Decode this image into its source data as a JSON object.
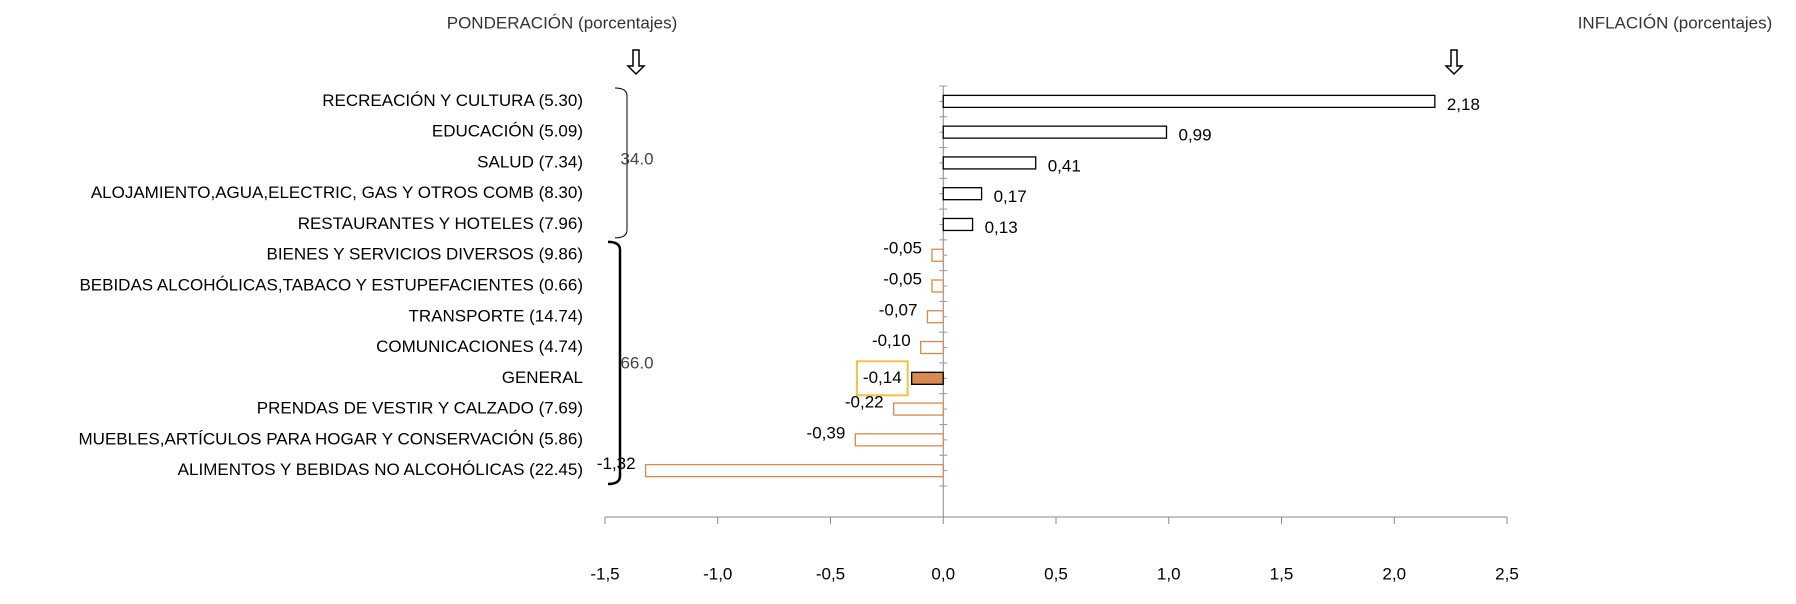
{
  "chart_data": {
    "type": "hbar",
    "left_header": "PONDERACIÓN (porcentajes)",
    "right_header": "INFLACIÓN (porcentajes)",
    "categories": [
      "RECREACIÓN Y CULTURA (5.30)",
      "EDUCACIÓN (5.09)",
      "SALUD (7.34)",
      "ALOJAMIENTO,AGUA,ELECTRIC, GAS Y OTROS COMB (8.30)",
      "RESTAURANTES Y HOTELES (7.96)",
      "BIENES Y SERVICIOS DIVERSOS (9.86)",
      "BEBIDAS ALCOHÓLICAS,TABACO Y ESTUPEFACIENTES (0.66)",
      "TRANSPORTE (14.74)",
      "COMUNICACIONES (4.74)",
      "GENERAL",
      "PRENDAS DE VESTIR Y CALZADO (7.69)",
      "MUEBLES,ARTÍCULOS PARA HOGAR Y CONSERVACIÓN (5.86)",
      "ALIMENTOS Y BEBIDAS NO ALCOHÓLICAS (22.45)"
    ],
    "values": [
      2.18,
      0.99,
      0.41,
      0.17,
      0.13,
      -0.05,
      -0.05,
      -0.07,
      -0.1,
      -0.14,
      -0.22,
      -0.39,
      -1.32
    ],
    "value_labels": [
      "2,18",
      "0,99",
      "0,41",
      "0,17",
      "0,13",
      "-0,05",
      "-0,05",
      "-0,07",
      "-0,10",
      "-0,14",
      "-0,22",
      "-0,39",
      "-1,32"
    ],
    "positive_color": "#000000",
    "negative_color": "#d9894f",
    "highlight": "GENERAL",
    "highlight_box_color": "#f5c242",
    "groups": [
      {
        "label": "34.0"
      },
      {
        "label": "66.0"
      }
    ],
    "xlim": [
      -1.5,
      2.5
    ],
    "xticks": [
      {
        "value": -1.5,
        "label": "-1,5"
      },
      {
        "value": -1.0,
        "label": "-1,0"
      },
      {
        "value": -0.5,
        "label": "-0,5"
      },
      {
        "value": 0.0,
        "label": "0,0"
      },
      {
        "value": 0.5,
        "label": "0,5"
      },
      {
        "value": 1.0,
        "label": "1,0"
      },
      {
        "value": 1.5,
        "label": "1,5"
      },
      {
        "value": 2.0,
        "label": "2,0"
      },
      {
        "value": 2.5,
        "label": "2,5"
      }
    ]
  }
}
